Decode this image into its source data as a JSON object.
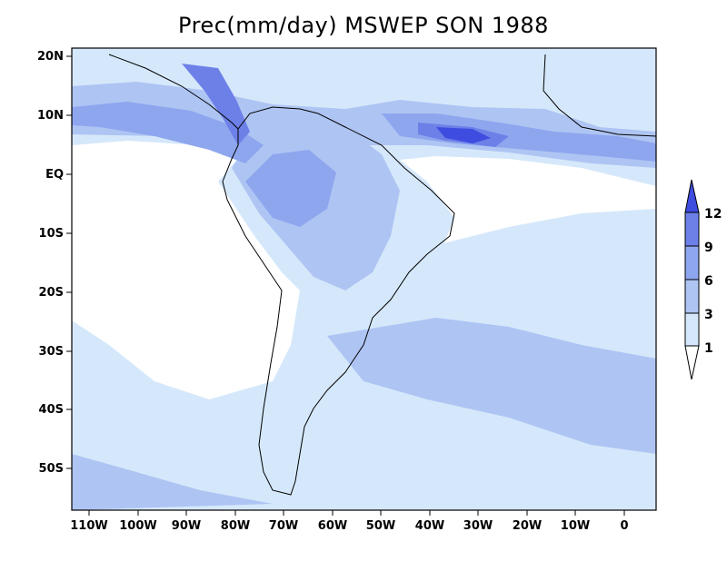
{
  "title": "Prec(mm/day) MSWEP SON 1988",
  "map": {
    "lon_range": [
      -115,
      6
    ],
    "lat_range": [
      -57,
      21
    ],
    "x_ticks": [
      "110W",
      "100W",
      "90W",
      "80W",
      "70W",
      "60W",
      "50W",
      "40W",
      "30W",
      "20W",
      "10W",
      "0"
    ],
    "y_ticks": [
      "20N",
      "10N",
      "EQ",
      "10S",
      "20S",
      "30S",
      "40S",
      "50S"
    ]
  },
  "colorbar": {
    "labels": [
      "1",
      "3",
      "6",
      "9",
      "12"
    ],
    "colors": [
      "#ffffff",
      "#d5e8fb",
      "#aec4f3",
      "#8ea6ee",
      "#6d80e8",
      "#3f4ce0"
    ]
  }
}
